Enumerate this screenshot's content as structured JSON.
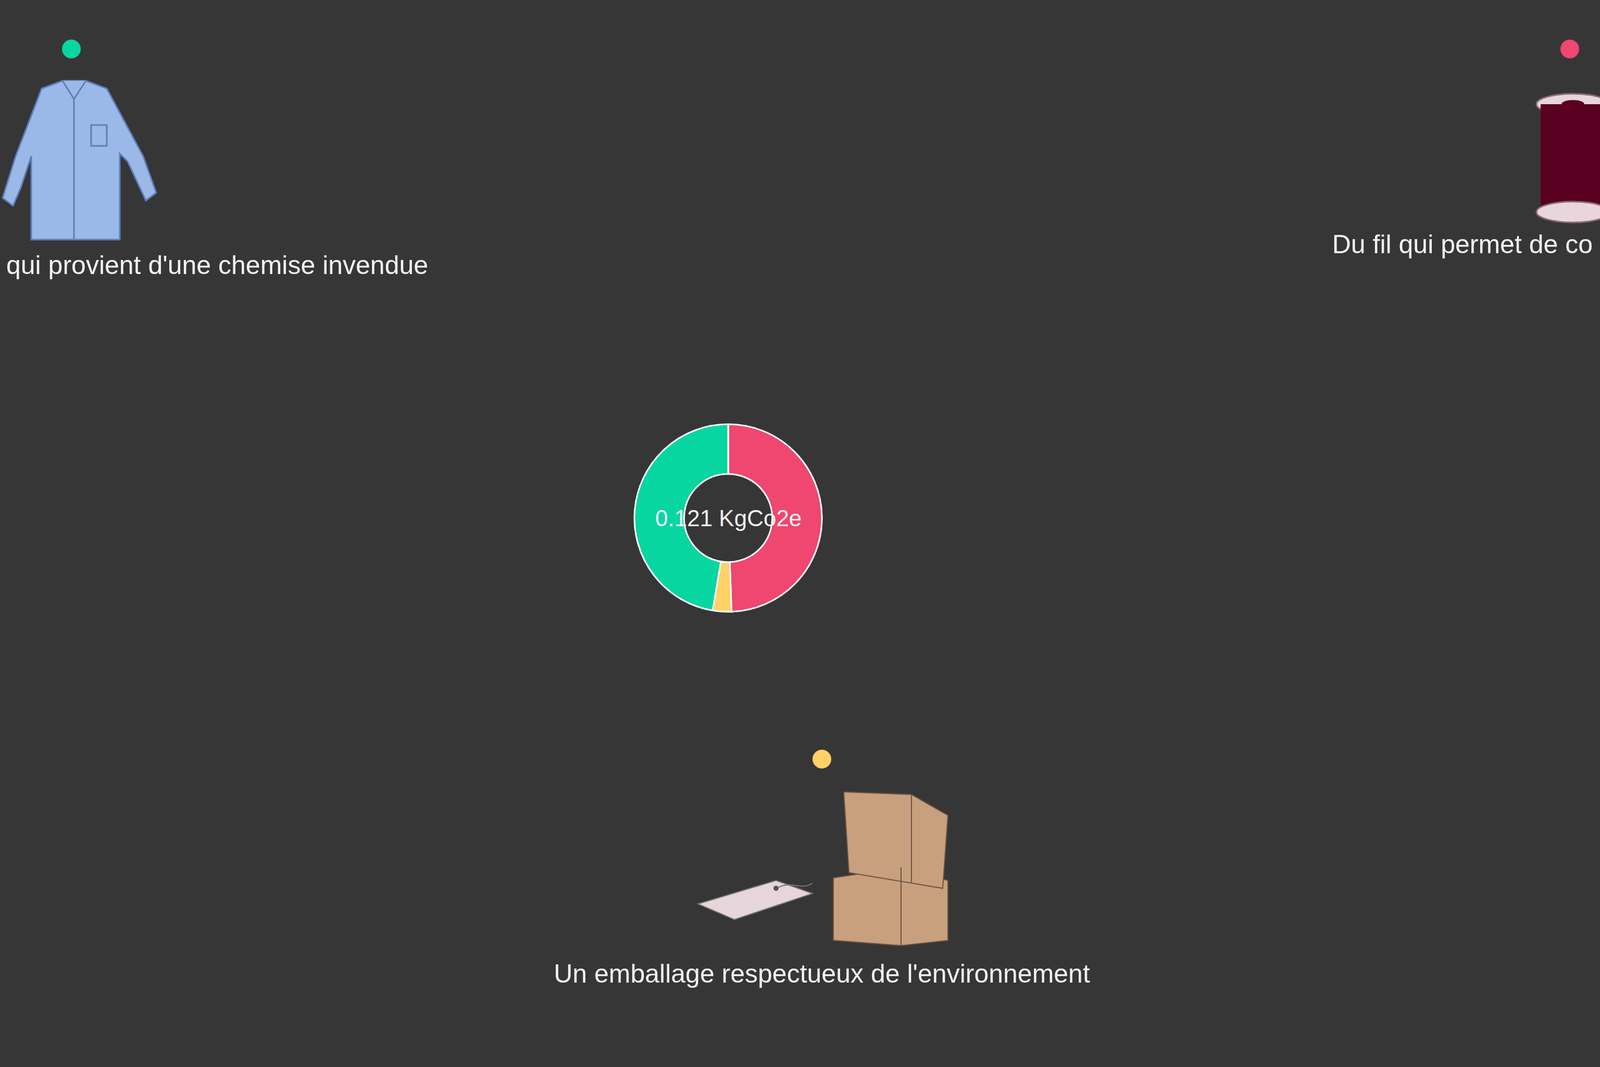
{
  "chart_data": {
    "type": "pie",
    "categories": [
      "qui provient d'une chemise invendue",
      "Du fil qui permet de co",
      "Un emballage respectueux de l'environnement"
    ],
    "values": [
      0.0573,
      0.0598,
      0.0039
    ],
    "colors": [
      "#08d6a0",
      "#ef476f",
      "#ffd166"
    ],
    "center_label": "0.121 KgCo2e",
    "data_labels": false
  }
}
